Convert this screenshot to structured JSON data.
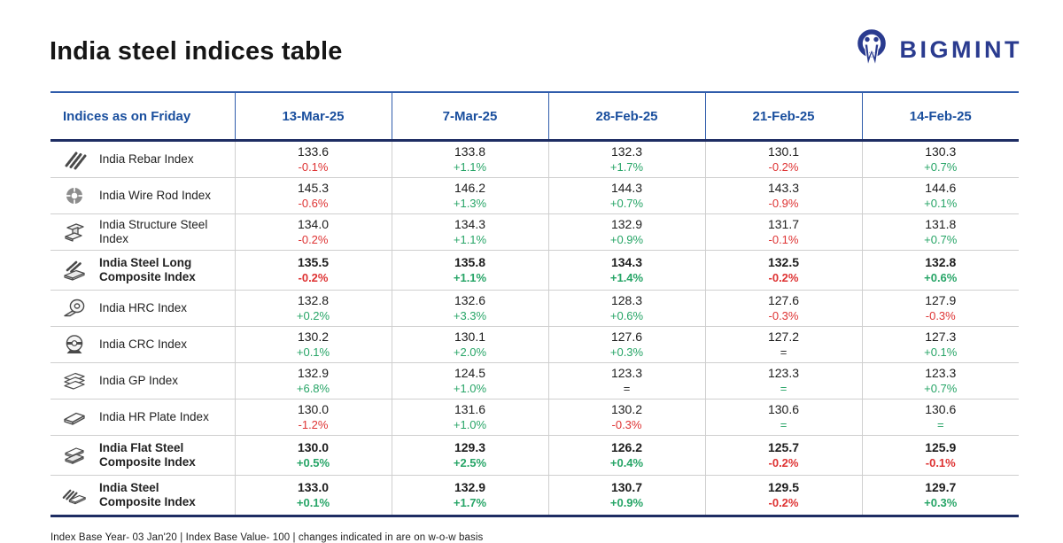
{
  "page": {
    "title": "India steel indices table"
  },
  "logo": {
    "brand": "BIGMINT"
  },
  "colors": {
    "header_blue": "#1a4f9e",
    "navy_rule": "#1e2d63",
    "logo_navy": "#2a3b8f",
    "positive_green": "#27a567",
    "negative_red": "#de3333",
    "neutral_dark": "#2b2b2b"
  },
  "footnote": "Index Base Year- 03 Jan'20 | Index Base Value- 100 | changes indicated in are on w-o-w basis",
  "chart_data": {
    "type": "table",
    "title": "India steel indices table",
    "columns": [
      "Indices as on Friday",
      "13-Mar-25",
      "7-Mar-25",
      "28-Feb-25",
      "21-Feb-25",
      "14-Feb-25"
    ],
    "rows": [
      {
        "name": "India Rebar Index",
        "name_lines": [
          "India Rebar Index"
        ],
        "icon": "rebar-icon",
        "bold": false,
        "cells": [
          {
            "value": "133.6",
            "change": "-0.1%",
            "dir": "down"
          },
          {
            "value": "133.8",
            "change": "+1.1%",
            "dir": "up"
          },
          {
            "value": "132.3",
            "change": "+1.7%",
            "dir": "up"
          },
          {
            "value": "130.1",
            "change": "-0.2%",
            "dir": "down"
          },
          {
            "value": "130.3",
            "change": "+0.7%",
            "dir": "up"
          }
        ]
      },
      {
        "name": "India Wire Rod Index",
        "name_lines": [
          "India Wire Rod Index"
        ],
        "icon": "wire-rod-icon",
        "bold": false,
        "cells": [
          {
            "value": "145.3",
            "change": "-0.6%",
            "dir": "down"
          },
          {
            "value": "146.2",
            "change": "+1.3%",
            "dir": "up"
          },
          {
            "value": "144.3",
            "change": "+0.7%",
            "dir": "up"
          },
          {
            "value": "143.3",
            "change": "-0.9%",
            "dir": "down"
          },
          {
            "value": "144.6",
            "change": "+0.1%",
            "dir": "up"
          }
        ]
      },
      {
        "name": "India Structure Steel Index",
        "name_lines": [
          "India Structure Steel Index"
        ],
        "icon": "structure-steel-icon",
        "bold": false,
        "cells": [
          {
            "value": "134.0",
            "change": "-0.2%",
            "dir": "down"
          },
          {
            "value": "134.3",
            "change": "+1.1%",
            "dir": "up"
          },
          {
            "value": "132.9",
            "change": "+0.9%",
            "dir": "up"
          },
          {
            "value": "131.7",
            "change": "-0.1%",
            "dir": "down"
          },
          {
            "value": "131.8",
            "change": "+0.7%",
            "dir": "up"
          }
        ]
      },
      {
        "name": "India Steel Long Composite Index",
        "name_lines": [
          "India Steel Long",
          "Composite Index"
        ],
        "icon": "long-composite-icon",
        "bold": true,
        "cells": [
          {
            "value": "135.5",
            "change": "-0.2%",
            "dir": "down"
          },
          {
            "value": "135.8",
            "change": "+1.1%",
            "dir": "up"
          },
          {
            "value": "134.3",
            "change": "+1.4%",
            "dir": "up"
          },
          {
            "value": "132.5",
            "change": "-0.2%",
            "dir": "down"
          },
          {
            "value": "132.8",
            "change": "+0.6%",
            "dir": "up"
          }
        ]
      },
      {
        "name": "India HRC Index",
        "name_lines": [
          "India HRC Index"
        ],
        "icon": "hrc-coil-icon",
        "bold": false,
        "cells": [
          {
            "value": "132.8",
            "change": "+0.2%",
            "dir": "up"
          },
          {
            "value": "132.6",
            "change": "+3.3%",
            "dir": "up"
          },
          {
            "value": "128.3",
            "change": "+0.6%",
            "dir": "up"
          },
          {
            "value": "127.6",
            "change": "-0.3%",
            "dir": "down"
          },
          {
            "value": "127.9",
            "change": "-0.3%",
            "dir": "down"
          }
        ]
      },
      {
        "name": "India CRC Index",
        "name_lines": [
          "India CRC Index"
        ],
        "icon": "crc-coil-icon",
        "bold": false,
        "cells": [
          {
            "value": "130.2",
            "change": "+0.1%",
            "dir": "up"
          },
          {
            "value": "130.1",
            "change": "+2.0%",
            "dir": "up"
          },
          {
            "value": "127.6",
            "change": "+0.3%",
            "dir": "up"
          },
          {
            "value": "127.2",
            "change": "=",
            "dir": "flat"
          },
          {
            "value": "127.3",
            "change": "+0.1%",
            "dir": "up"
          }
        ]
      },
      {
        "name": "India GP Index",
        "name_lines": [
          "India GP Index"
        ],
        "icon": "gp-sheets-icon",
        "bold": false,
        "cells": [
          {
            "value": "132.9",
            "change": "+6.8%",
            "dir": "up"
          },
          {
            "value": "124.5",
            "change": "+1.0%",
            "dir": "up"
          },
          {
            "value": "123.3",
            "change": "=",
            "dir": "flat"
          },
          {
            "value": "123.3",
            "change": "=",
            "dir": "flat-up"
          },
          {
            "value": "123.3",
            "change": "+0.7%",
            "dir": "up"
          }
        ]
      },
      {
        "name": "India HR Plate Index",
        "name_lines": [
          "India HR Plate Index"
        ],
        "icon": "hr-plate-icon",
        "bold": false,
        "cells": [
          {
            "value": "130.0",
            "change": "-1.2%",
            "dir": "down"
          },
          {
            "value": "131.6",
            "change": "+1.0%",
            "dir": "up"
          },
          {
            "value": "130.2",
            "change": "-0.3%",
            "dir": "down"
          },
          {
            "value": "130.6",
            "change": "=",
            "dir": "flat-up"
          },
          {
            "value": "130.6",
            "change": "=",
            "dir": "flat-up"
          }
        ]
      },
      {
        "name": "India Flat Steel Composite Index",
        "name_lines": [
          "India Flat Steel",
          "Composite Index"
        ],
        "icon": "flat-composite-icon",
        "bold": true,
        "cells": [
          {
            "value": "130.0",
            "change": "+0.5%",
            "dir": "up"
          },
          {
            "value": "129.3",
            "change": "+2.5%",
            "dir": "up"
          },
          {
            "value": "126.2",
            "change": "+0.4%",
            "dir": "up"
          },
          {
            "value": "125.7",
            "change": "-0.2%",
            "dir": "down"
          },
          {
            "value": "125.9",
            "change": "-0.1%",
            "dir": "down"
          }
        ]
      },
      {
        "name": "India Steel Composite Index",
        "name_lines": [
          "India Steel",
          "Composite Index"
        ],
        "icon": "steel-composite-icon",
        "bold": true,
        "cells": [
          {
            "value": "133.0",
            "change": "+0.1%",
            "dir": "up"
          },
          {
            "value": "132.9",
            "change": "+1.7%",
            "dir": "up"
          },
          {
            "value": "130.7",
            "change": "+0.9%",
            "dir": "up"
          },
          {
            "value": "129.5",
            "change": "-0.2%",
            "dir": "down"
          },
          {
            "value": "129.7",
            "change": "+0.3%",
            "dir": "up"
          }
        ]
      }
    ]
  }
}
